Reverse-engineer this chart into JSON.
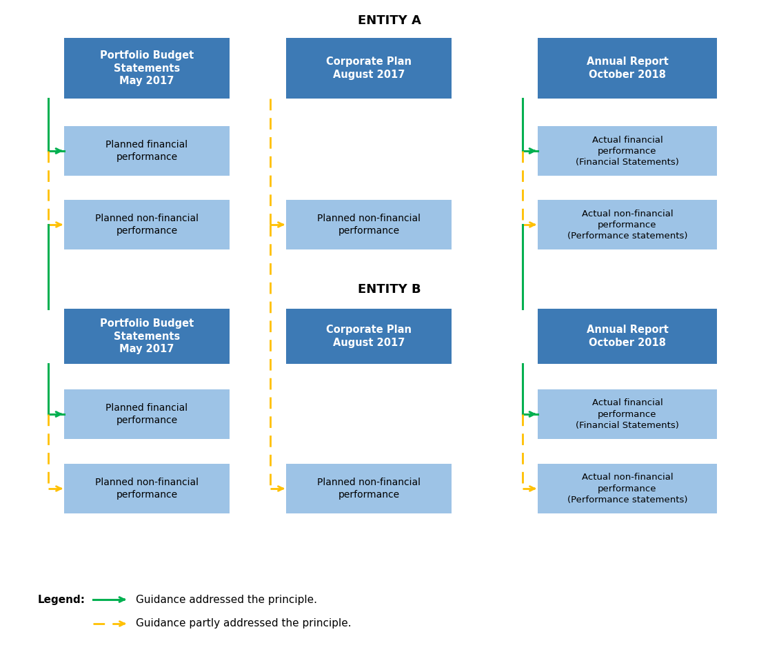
{
  "title_a": "ENTITY A",
  "title_b": "ENTITY B",
  "dark_blue": "#3D7AB5",
  "light_blue": "#9DC3E6",
  "bg_color": "#FFFFFF",
  "green_arrow": "#00B050",
  "orange_arrow": "#FFC000",
  "legend_solid": "Guidance addressed the principle.",
  "legend_dashed": "Guidance partly addressed the principle.",
  "col1_header_a": "Portfolio Budget\nStatements\nMay 2017",
  "col2_header_a": "Corporate Plan\nAugust 2017",
  "col3_header_a": "Annual Report\nOctober 2018",
  "row1_col1_a": "Planned financial\nperformance",
  "row2_col1_a": "Planned non-financial\nperformance",
  "row2_col2_a": "Planned non-financial\nperformance",
  "row1_col3_a": "Actual financial\nperformance\n(Financial Statements)",
  "row2_col3_a": "Actual non-financial\nperformance\n(Performance statements)",
  "col1_header_b": "Portfolio Budget\nStatements\nMay 2017",
  "col2_header_b": "Corporate Plan\nAugust 2017",
  "col3_header_b": "Annual Report\nOctober 2018",
  "row1_col1_b": "Planned financial\nperformance",
  "row2_col1_b": "Planned non-financial\nperformance",
  "row2_col2_b": "Planned non-financial\nperformance",
  "row1_col3_b": "Actual financial\nperformance\n(Financial Statements)",
  "row2_col3_b": "Actual non-financial\nperformance\n(Performance statements)"
}
